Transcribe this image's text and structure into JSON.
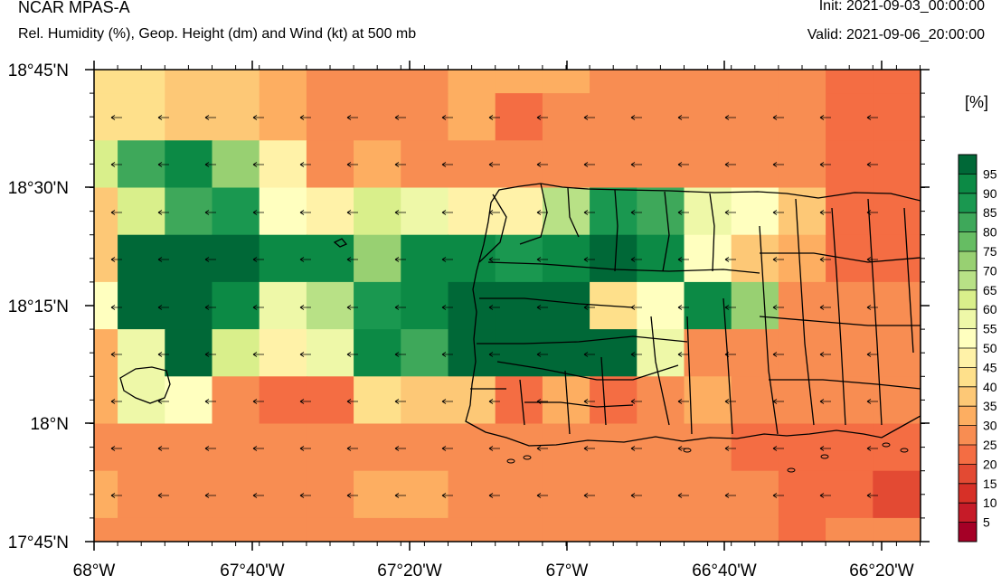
{
  "header": {
    "title": "NCAR MPAS-A",
    "subtitle": "Rel. Humidity (%), Geop. Height (dm) and Wind (kt) at 500 mb",
    "init": "Init: 2021-09-03_00:00:00",
    "valid": "Valid: 2021-09-06_20:00:00"
  },
  "colorbar": {
    "unit_label": "[%]",
    "levels": [
      5,
      10,
      15,
      20,
      25,
      30,
      35,
      40,
      45,
      50,
      55,
      60,
      65,
      70,
      75,
      80,
      85,
      90,
      95
    ],
    "colors": [
      "#a50026",
      "#c61b28",
      "#d73027",
      "#e34a33",
      "#f46d43",
      "#f88d52",
      "#fdae61",
      "#fdc876",
      "#fee08b",
      "#fff2a8",
      "#ffffbf",
      "#eef8a8",
      "#d9ef8b",
      "#b8e186",
      "#98d072",
      "#66bd63",
      "#3ea85a",
      "#1a9850",
      "#0c8a45",
      "#006837"
    ]
  },
  "map": {
    "lon_labels": [
      "68°W",
      "67°40'W",
      "67°20'W",
      "67°W",
      "66°40'W",
      "66°20'W"
    ],
    "lat_labels": [
      "18°45'N",
      "18°30'N",
      "18°15'N",
      "18°N",
      "17°45'N"
    ]
  },
  "chart_data": {
    "type": "heatmap",
    "title": "Rel. Humidity (%), Geop. Height (dm) and Wind (kt) at 500 mb",
    "x_range": [
      "68°W",
      "66°15'W"
    ],
    "y_range": [
      "17°45'N",
      "18°45'N"
    ],
    "rh_grid_rows_north_to_south": [
      [
        42,
        42,
        37,
        37,
        32,
        28,
        28,
        28,
        33,
        33,
        33,
        28,
        28,
        28,
        28,
        28,
        22,
        22,
        22
      ],
      [
        42,
        42,
        37,
        37,
        32,
        28,
        28,
        28,
        33,
        22,
        28,
        28,
        28,
        28,
        28,
        28,
        22,
        22,
        22
      ],
      [
        62,
        82,
        92,
        72,
        47,
        28,
        32,
        28,
        28,
        28,
        28,
        28,
        28,
        28,
        28,
        28,
        22,
        22,
        18
      ],
      [
        37,
        62,
        82,
        88,
        52,
        48,
        62,
        58,
        48,
        48,
        67,
        88,
        83,
        57,
        53,
        37,
        22,
        22,
        18
      ],
      [
        37,
        97,
        97,
        97,
        92,
        92,
        72,
        92,
        92,
        87,
        92,
        97,
        92,
        52,
        37,
        32,
        22,
        22,
        22
      ],
      [
        52,
        97,
        97,
        92,
        57,
        67,
        88,
        92,
        97,
        97,
        97,
        42,
        52,
        92,
        72,
        28,
        28,
        28,
        28
      ],
      [
        32,
        58,
        97,
        62,
        47,
        57,
        92,
        82,
        97,
        97,
        97,
        97,
        57,
        28,
        28,
        28,
        28,
        28,
        28
      ],
      [
        32,
        58,
        52,
        28,
        22,
        22,
        42,
        37,
        37,
        22,
        32,
        22,
        28,
        32,
        28,
        28,
        28,
        28,
        28
      ],
      [
        28,
        28,
        28,
        28,
        28,
        28,
        28,
        28,
        28,
        28,
        28,
        28,
        28,
        28,
        22,
        22,
        22,
        22,
        22
      ],
      [
        32,
        28,
        28,
        28,
        28,
        28,
        32,
        32,
        28,
        28,
        28,
        28,
        28,
        28,
        28,
        22,
        22,
        18,
        22
      ],
      [
        28,
        28,
        28,
        28,
        28,
        28,
        28,
        28,
        28,
        28,
        28,
        28,
        28,
        28,
        28,
        22,
        28,
        28,
        28
      ]
    ],
    "wind_barbs": "arrows pointing west (easterly flow) at every grid cell"
  }
}
